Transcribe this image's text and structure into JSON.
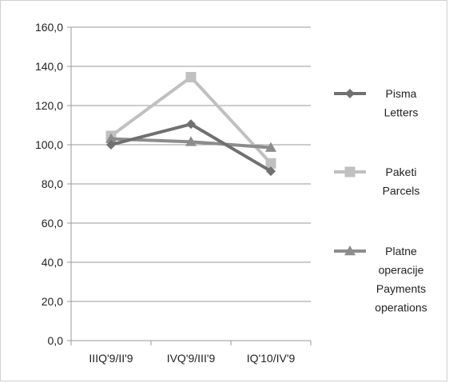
{
  "chart_data": {
    "type": "line",
    "title": "",
    "xlabel": "",
    "ylabel": "",
    "categories": [
      "IIIQ'9/II'9",
      "IVQ'9/III'9",
      "IQ'10/IV'9"
    ],
    "ylim": [
      0,
      160
    ],
    "yticks": [
      "0,0",
      "20,0",
      "40,0",
      "60,0",
      "80,0",
      "100,0",
      "120,0",
      "140,0",
      "160,0"
    ],
    "grid": true,
    "legend_position": "right",
    "series": [
      {
        "name": "Pisma Letters",
        "legend_lines": [
          "Pisma",
          "Letters"
        ],
        "marker": "diamond",
        "color": "#707070",
        "values": [
          100.0,
          110.5,
          86.5
        ]
      },
      {
        "name": "Paketi Parcels",
        "legend_lines": [
          "Paketi",
          "Parcels"
        ],
        "marker": "square",
        "color": "#c0c0c0",
        "values": [
          104.5,
          134.5,
          90.5
        ]
      },
      {
        "name": "Platne operacije Payments operations",
        "legend_lines": [
          "Platne",
          "operacije",
          "Payments",
          "operations"
        ],
        "marker": "triangle",
        "color": "#8c8c8c",
        "values": [
          103.0,
          101.5,
          98.5
        ]
      }
    ]
  }
}
